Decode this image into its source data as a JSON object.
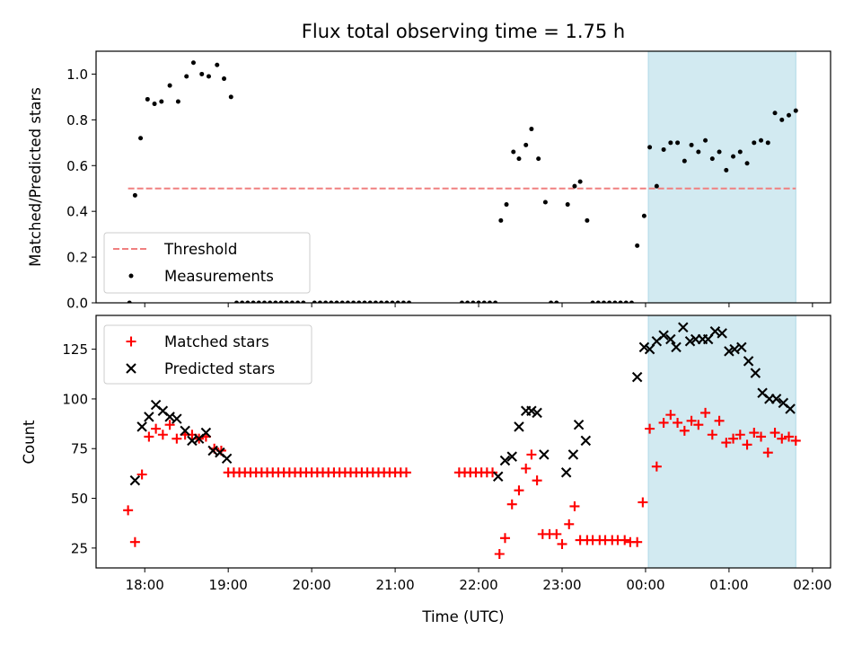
{
  "title": "Flux total observing time = 1.75 h",
  "xlabel": "Time (UTC)",
  "xticks": [
    "18:00",
    "19:00",
    "20:00",
    "21:00",
    "22:00",
    "23:00",
    "00:00",
    "01:00",
    "02:00"
  ],
  "colors": {
    "threshold": "#f08080",
    "measurements": "#000000",
    "matched": "#ff0000",
    "predicted": "#000000",
    "span": "#add8e6"
  },
  "chart_data": [
    {
      "type": "scatter",
      "ylabel": "Matched/Predicted stars",
      "xlim": [
        "17:25",
        "02:13"
      ],
      "ylim": [
        0,
        1.1
      ],
      "yticks": [
        "0.0",
        "0.2",
        "0.4",
        "0.6",
        "0.8",
        "1.0"
      ],
      "legend_position": "lower-left",
      "shaded_span": [
        "00:02",
        "01:48"
      ],
      "threshold": {
        "name": "Threshold",
        "y": 0.5,
        "x_range": [
          "17:48",
          "01:48"
        ]
      },
      "series": [
        {
          "name": "Measurements",
          "marker": "dot",
          "points": [
            [
              "17:49",
              0.0
            ],
            [
              "17:53",
              0.47
            ],
            [
              "17:57",
              0.72
            ],
            [
              "18:02",
              0.89
            ],
            [
              "18:07",
              0.87
            ],
            [
              "18:12",
              0.88
            ],
            [
              "18:18",
              0.95
            ],
            [
              "18:24",
              0.88
            ],
            [
              "18:30",
              0.99
            ],
            [
              "18:35",
              1.05
            ],
            [
              "18:41",
              1.0
            ],
            [
              "18:46",
              0.99
            ],
            [
              "18:52",
              1.04
            ],
            [
              "18:57",
              0.98
            ],
            [
              "19:02",
              0.9
            ],
            [
              "19:06",
              0.0
            ],
            [
              "19:10",
              0.0
            ],
            [
              "19:14",
              0.0
            ],
            [
              "19:18",
              0.0
            ],
            [
              "19:22",
              0.0
            ],
            [
              "19:26",
              0.0
            ],
            [
              "19:30",
              0.0
            ],
            [
              "19:34",
              0.0
            ],
            [
              "19:38",
              0.0
            ],
            [
              "19:42",
              0.0
            ],
            [
              "19:46",
              0.0
            ],
            [
              "19:50",
              0.0
            ],
            [
              "19:54",
              0.0
            ],
            [
              "20:02",
              0.0
            ],
            [
              "20:06",
              0.0
            ],
            [
              "20:10",
              0.0
            ],
            [
              "20:14",
              0.0
            ],
            [
              "20:18",
              0.0
            ],
            [
              "20:22",
              0.0
            ],
            [
              "20:26",
              0.0
            ],
            [
              "20:30",
              0.0
            ],
            [
              "20:34",
              0.0
            ],
            [
              "20:38",
              0.0
            ],
            [
              "20:42",
              0.0
            ],
            [
              "20:46",
              0.0
            ],
            [
              "20:50",
              0.0
            ],
            [
              "20:54",
              0.0
            ],
            [
              "20:58",
              0.0
            ],
            [
              "21:02",
              0.0
            ],
            [
              "21:06",
              0.0
            ],
            [
              "21:10",
              0.0
            ],
            [
              "21:48",
              0.0
            ],
            [
              "21:52",
              0.0
            ],
            [
              "21:56",
              0.0
            ],
            [
              "22:00",
              0.0
            ],
            [
              "22:04",
              0.0
            ],
            [
              "22:08",
              0.0
            ],
            [
              "22:12",
              0.0
            ],
            [
              "22:16",
              0.36
            ],
            [
              "22:20",
              0.43
            ],
            [
              "22:25",
              0.66
            ],
            [
              "22:29",
              0.63
            ],
            [
              "22:34",
              0.69
            ],
            [
              "22:38",
              0.76
            ],
            [
              "22:43",
              0.63
            ],
            [
              "22:48",
              0.44
            ],
            [
              "22:52",
              0.0
            ],
            [
              "22:56",
              0.0
            ],
            [
              "23:04",
              0.43
            ],
            [
              "23:09",
              0.51
            ],
            [
              "23:13",
              0.53
            ],
            [
              "23:18",
              0.36
            ],
            [
              "23:22",
              0.0
            ],
            [
              "23:26",
              0.0
            ],
            [
              "23:30",
              0.0
            ],
            [
              "23:34",
              0.0
            ],
            [
              "23:38",
              0.0
            ],
            [
              "23:42",
              0.0
            ],
            [
              "23:46",
              0.0
            ],
            [
              "23:50",
              0.0
            ],
            [
              "23:54",
              0.25
            ],
            [
              "23:59",
              0.38
            ],
            [
              "00:03",
              0.68
            ],
            [
              "00:08",
              0.51
            ],
            [
              "00:13",
              0.67
            ],
            [
              "00:18",
              0.7
            ],
            [
              "00:23",
              0.7
            ],
            [
              "00:28",
              0.62
            ],
            [
              "00:33",
              0.69
            ],
            [
              "00:38",
              0.66
            ],
            [
              "00:43",
              0.71
            ],
            [
              "00:48",
              0.63
            ],
            [
              "00:53",
              0.66
            ],
            [
              "00:58",
              0.58
            ],
            [
              "01:03",
              0.64
            ],
            [
              "01:08",
              0.66
            ],
            [
              "01:13",
              0.61
            ],
            [
              "01:18",
              0.7
            ],
            [
              "01:23",
              0.71
            ],
            [
              "01:28",
              0.7
            ],
            [
              "01:33",
              0.83
            ],
            [
              "01:38",
              0.8
            ],
            [
              "01:43",
              0.82
            ],
            [
              "01:48",
              0.84
            ]
          ]
        }
      ]
    },
    {
      "type": "scatter",
      "ylabel": "Count",
      "xlabel": "Time (UTC)",
      "xlim": [
        "17:25",
        "02:13"
      ],
      "ylim": [
        15,
        142
      ],
      "yticks": [
        "25",
        "50",
        "75",
        "100",
        "125"
      ],
      "legend_position": "upper-left",
      "shaded_span": [
        "00:02",
        "01:48"
      ],
      "series": [
        {
          "name": "Matched stars",
          "marker": "plus",
          "points": [
            [
              "17:48",
              44
            ],
            [
              "17:53",
              28
            ],
            [
              "17:58",
              62
            ],
            [
              "18:03",
              81
            ],
            [
              "18:08",
              85
            ],
            [
              "18:13",
              82
            ],
            [
              "18:18",
              87
            ],
            [
              "18:23",
              80
            ],
            [
              "18:29",
              82
            ],
            [
              "18:34",
              82
            ],
            [
              "18:39",
              80
            ],
            [
              "18:44",
              81
            ],
            [
              "18:50",
              75
            ],
            [
              "18:55",
              74
            ],
            [
              "19:00",
              63
            ],
            [
              "19:04",
              63
            ],
            [
              "19:08",
              63
            ],
            [
              "19:12",
              63
            ],
            [
              "19:16",
              63
            ],
            [
              "19:20",
              63
            ],
            [
              "19:24",
              63
            ],
            [
              "19:28",
              63
            ],
            [
              "19:32",
              63
            ],
            [
              "19:36",
              63
            ],
            [
              "19:40",
              63
            ],
            [
              "19:44",
              63
            ],
            [
              "19:48",
              63
            ],
            [
              "19:52",
              63
            ],
            [
              "19:56",
              63
            ],
            [
              "20:00",
              63
            ],
            [
              "20:04",
              63
            ],
            [
              "20:08",
              63
            ],
            [
              "20:12",
              63
            ],
            [
              "20:16",
              63
            ],
            [
              "20:20",
              63
            ],
            [
              "20:24",
              63
            ],
            [
              "20:28",
              63
            ],
            [
              "20:32",
              63
            ],
            [
              "20:36",
              63
            ],
            [
              "20:40",
              63
            ],
            [
              "20:44",
              63
            ],
            [
              "20:48",
              63
            ],
            [
              "20:52",
              63
            ],
            [
              "20:56",
              63
            ],
            [
              "21:00",
              63
            ],
            [
              "21:04",
              63
            ],
            [
              "21:08",
              63
            ],
            [
              "21:46",
              63
            ],
            [
              "21:50",
              63
            ],
            [
              "21:54",
              63
            ],
            [
              "21:58",
              63
            ],
            [
              "22:02",
              63
            ],
            [
              "22:06",
              63
            ],
            [
              "22:10",
              63
            ],
            [
              "22:15",
              22
            ],
            [
              "22:19",
              30
            ],
            [
              "22:24",
              47
            ],
            [
              "22:29",
              54
            ],
            [
              "22:34",
              65
            ],
            [
              "22:38",
              72
            ],
            [
              "22:42",
              59
            ],
            [
              "22:46",
              32
            ],
            [
              "22:51",
              32
            ],
            [
              "22:56",
              32
            ],
            [
              "23:00",
              27
            ],
            [
              "23:05",
              37
            ],
            [
              "23:09",
              46
            ],
            [
              "23:13",
              29
            ],
            [
              "23:18",
              29
            ],
            [
              "23:22",
              29
            ],
            [
              "23:27",
              29
            ],
            [
              "23:31",
              29
            ],
            [
              "23:36",
              29
            ],
            [
              "23:40",
              29
            ],
            [
              "23:45",
              29
            ],
            [
              "23:49",
              28
            ],
            [
              "23:54",
              28
            ],
            [
              "23:58",
              48
            ],
            [
              "00:03",
              85
            ],
            [
              "00:08",
              66
            ],
            [
              "00:13",
              88
            ],
            [
              "00:18",
              92
            ],
            [
              "00:23",
              88
            ],
            [
              "00:28",
              84
            ],
            [
              "00:33",
              89
            ],
            [
              "00:38",
              87
            ],
            [
              "00:43",
              93
            ],
            [
              "00:48",
              82
            ],
            [
              "00:53",
              89
            ],
            [
              "00:58",
              78
            ],
            [
              "01:03",
              80
            ],
            [
              "01:08",
              82
            ],
            [
              "01:13",
              77
            ],
            [
              "01:18",
              83
            ],
            [
              "01:23",
              81
            ],
            [
              "01:28",
              73
            ],
            [
              "01:33",
              83
            ],
            [
              "01:38",
              80
            ],
            [
              "01:43",
              81
            ],
            [
              "01:48",
              79
            ]
          ]
        },
        {
          "name": "Predicted stars",
          "marker": "x",
          "points": [
            [
              "17:53",
              59
            ],
            [
              "17:58",
              86
            ],
            [
              "18:03",
              91
            ],
            [
              "18:08",
              97
            ],
            [
              "18:13",
              94
            ],
            [
              "18:18",
              91
            ],
            [
              "18:23",
              90
            ],
            [
              "18:29",
              84
            ],
            [
              "18:34",
              79
            ],
            [
              "18:39",
              80
            ],
            [
              "18:44",
              83
            ],
            [
              "18:49",
              74
            ],
            [
              "18:54",
              73
            ],
            [
              "18:59",
              70
            ],
            [
              "22:14",
              61
            ],
            [
              "22:19",
              69
            ],
            [
              "22:24",
              71
            ],
            [
              "22:29",
              86
            ],
            [
              "22:34",
              94
            ],
            [
              "22:38",
              94
            ],
            [
              "22:42",
              93
            ],
            [
              "22:47",
              72
            ],
            [
              "23:03",
              63
            ],
            [
              "23:08",
              72
            ],
            [
              "23:12",
              87
            ],
            [
              "23:17",
              79
            ],
            [
              "23:54",
              111
            ],
            [
              "23:59",
              126
            ],
            [
              "00:03",
              125
            ],
            [
              "00:08",
              129
            ],
            [
              "00:13",
              132
            ],
            [
              "00:18",
              130
            ],
            [
              "00:22",
              126
            ],
            [
              "00:27",
              136
            ],
            [
              "00:32",
              129
            ],
            [
              "00:36",
              130
            ],
            [
              "00:41",
              130
            ],
            [
              "00:45",
              130
            ],
            [
              "00:50",
              134
            ],
            [
              "00:55",
              133
            ],
            [
              "01:00",
              124
            ],
            [
              "01:04",
              125
            ],
            [
              "01:09",
              126
            ],
            [
              "01:14",
              119
            ],
            [
              "01:19",
              113
            ],
            [
              "01:24",
              103
            ],
            [
              "01:29",
              100
            ],
            [
              "01:34",
              100
            ],
            [
              "01:39",
              98
            ],
            [
              "01:44",
              95
            ]
          ]
        }
      ]
    }
  ]
}
